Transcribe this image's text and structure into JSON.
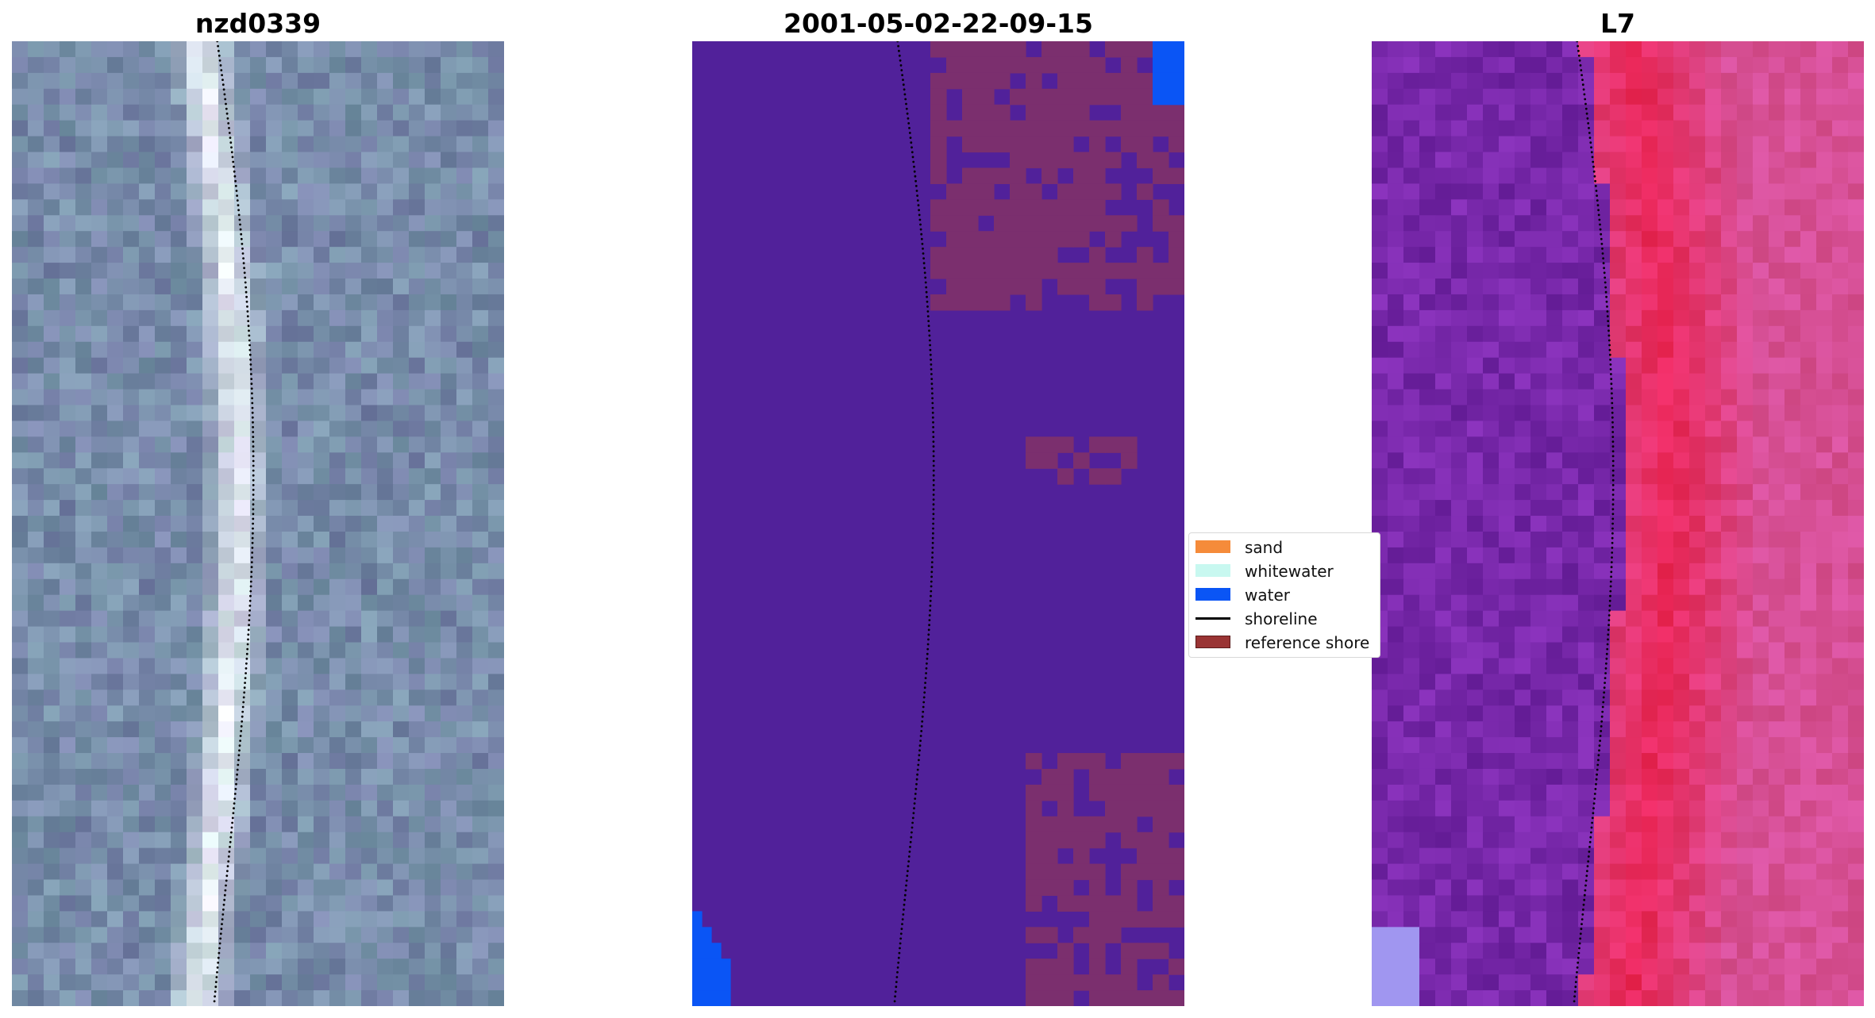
{
  "panels": [
    {
      "title": "nzd0339",
      "style": "rgb"
    },
    {
      "title": "2001-05-02-22-09-15",
      "style": "class"
    },
    {
      "title": "L7",
      "style": "falsecolor"
    }
  ],
  "legend": {
    "items": [
      {
        "label": "sand",
        "color": "#f58b3a",
        "kind": "patch"
      },
      {
        "label": "whitewater",
        "color": "#c8f8f0",
        "kind": "patch"
      },
      {
        "label": "water",
        "color": "#0a55f5",
        "kind": "patch"
      },
      {
        "label": "shoreline",
        "color": "#000000",
        "kind": "line"
      },
      {
        "label": "reference shore",
        "color": "#9a3434",
        "kind": "patch"
      }
    ]
  }
}
